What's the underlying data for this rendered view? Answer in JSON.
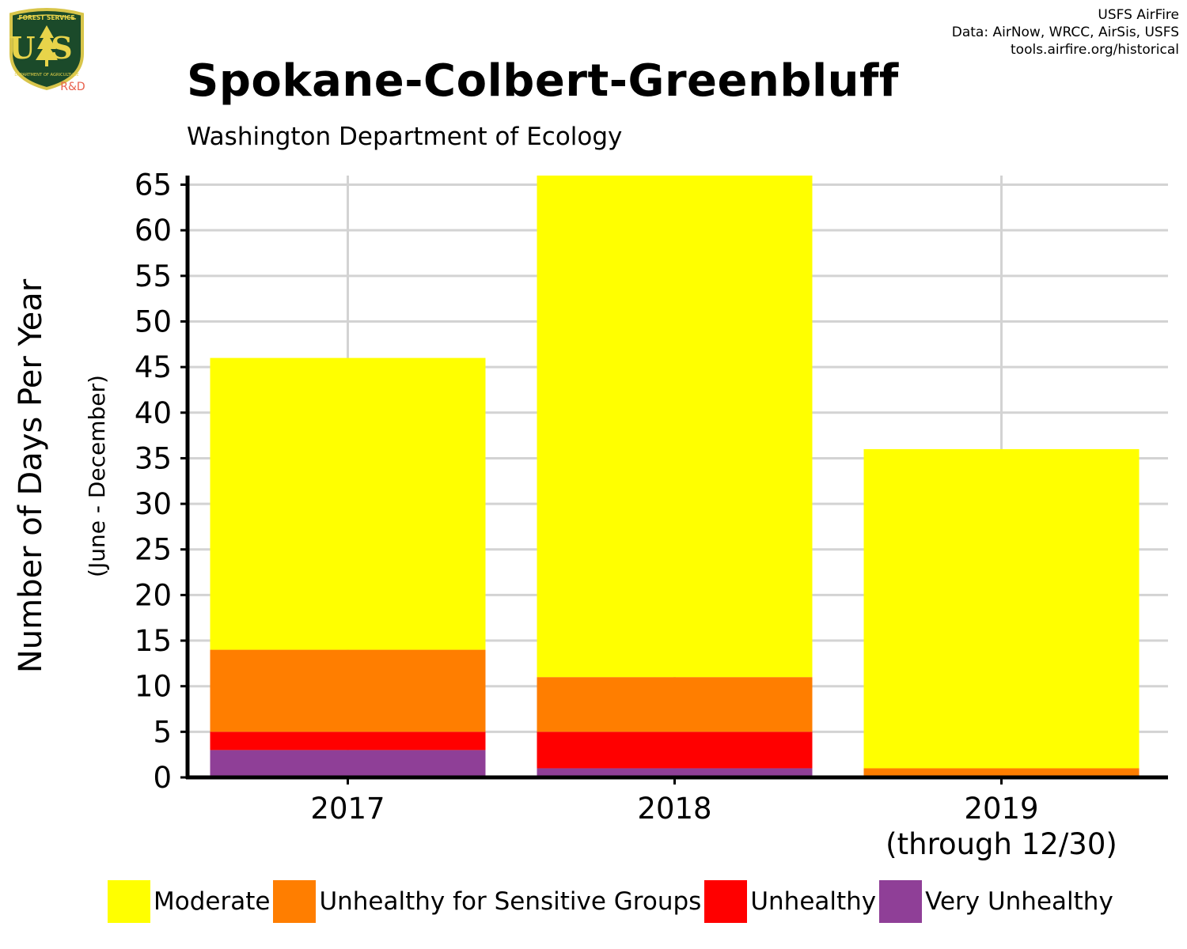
{
  "header": {
    "credits": [
      "USFS AirFire",
      "Data: AirNow, WRCC, AirSis, USFS",
      "tools.airfire.org/historical"
    ],
    "logo": {
      "arc_text": "FOREST SERVICE",
      "letters": "US",
      "bottom_text": "DEPARTMENT OF AGRICULTURE",
      "tag": "R&D",
      "colors": {
        "shield": "#1b4a2a",
        "border": "#d8c54a",
        "text": "#e8d44a",
        "tag": "#e8604c"
      }
    }
  },
  "chart_data": {
    "type": "bar",
    "stacked": true,
    "title": "Spokane-Colbert-Greenbluff",
    "subtitle": "Washington Department of Ecology",
    "ylabel": "Number of Days Per Year",
    "ylabel_sub": "(June - December)",
    "categories": [
      {
        "label": "2017",
        "sublabel": ""
      },
      {
        "label": "2018",
        "sublabel": ""
      },
      {
        "label": "2019",
        "sublabel": "(through 12/30)"
      }
    ],
    "yticks": [
      "0",
      "5",
      "10",
      "15",
      "20",
      "25",
      "30",
      "35",
      "40",
      "45",
      "50",
      "55",
      "60",
      "65"
    ],
    "ylim": [
      0,
      66
    ],
    "grid": true,
    "legend_position": "bottom",
    "series": [
      {
        "name": "Very Unhealthy",
        "color": "#8f3f97",
        "values": [
          3,
          1,
          0
        ]
      },
      {
        "name": "Unhealthy",
        "color": "#ff0000",
        "values": [
          2,
          4,
          0
        ]
      },
      {
        "name": "Unhealthy for Sensitive Groups",
        "color": "#ff7e00",
        "values": [
          9,
          6,
          1
        ]
      },
      {
        "name": "Moderate",
        "color": "#ffff00",
        "values": [
          32,
          55,
          35
        ]
      }
    ],
    "legend_order": [
      "Moderate",
      "Unhealthy for Sensitive Groups",
      "Unhealthy",
      "Very Unhealthy"
    ]
  }
}
